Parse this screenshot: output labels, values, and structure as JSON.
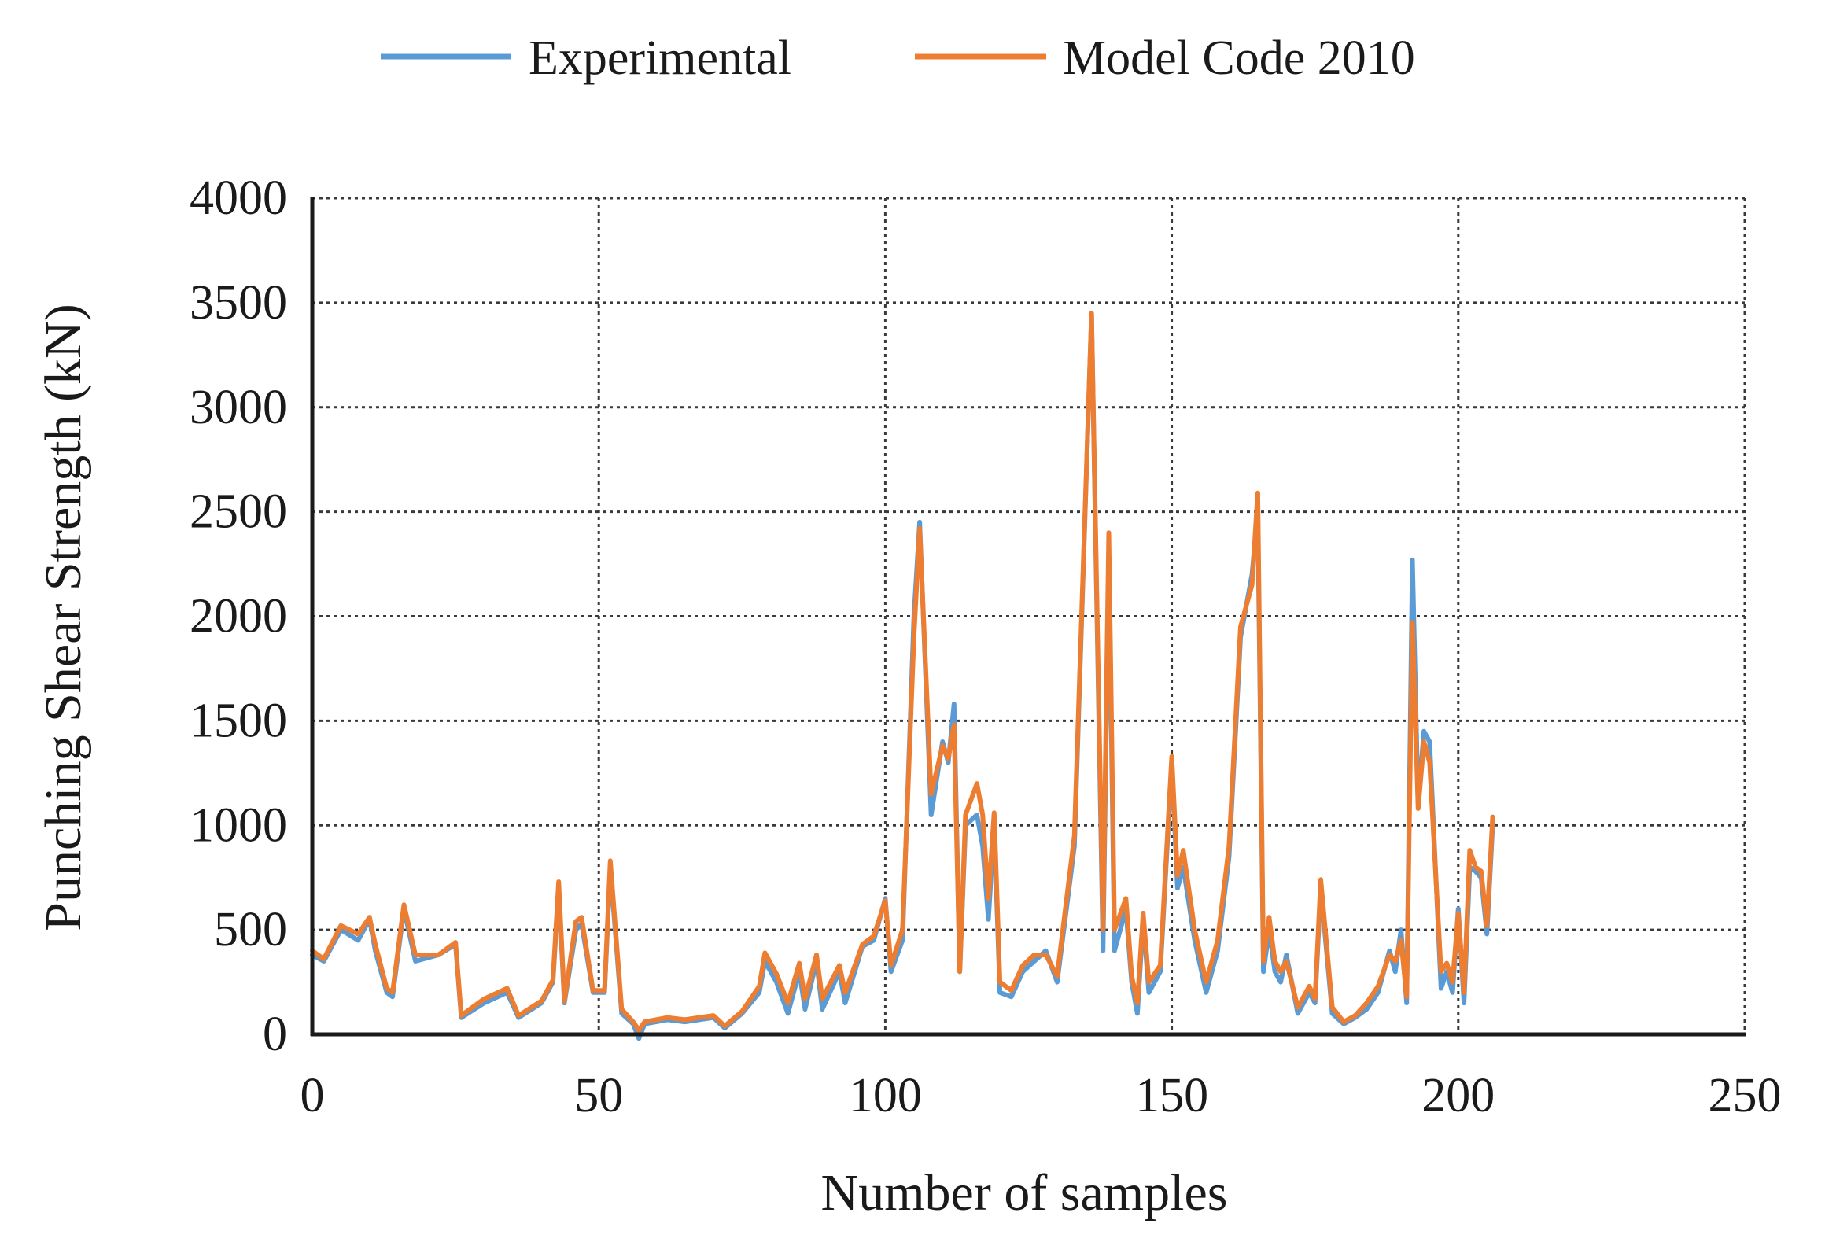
{
  "chart_data": {
    "type": "line",
    "title": "",
    "xlabel": "Number of samples",
    "ylabel": "Punching Shear Strength (kN)",
    "xlim": [
      0,
      250
    ],
    "ylim": [
      0,
      4000
    ],
    "xticks": [
      0,
      50,
      100,
      150,
      200,
      250
    ],
    "yticks": [
      0,
      500,
      1000,
      1500,
      2000,
      2500,
      3000,
      3500,
      4000
    ],
    "grid": true,
    "legend_position": "top-center",
    "series": [
      {
        "name": "Experimental",
        "color": "#5b9bd5",
        "keypoints": [
          [
            0,
            380
          ],
          [
            2,
            350
          ],
          [
            5,
            500
          ],
          [
            8,
            450
          ],
          [
            10,
            550
          ],
          [
            11,
            400
          ],
          [
            13,
            200
          ],
          [
            14,
            180
          ],
          [
            16,
            600
          ],
          [
            18,
            350
          ],
          [
            22,
            380
          ],
          [
            25,
            430
          ],
          [
            26,
            80
          ],
          [
            30,
            150
          ],
          [
            34,
            200
          ],
          [
            36,
            80
          ],
          [
            40,
            150
          ],
          [
            42,
            250
          ],
          [
            43,
            700
          ],
          [
            44,
            150
          ],
          [
            46,
            500
          ],
          [
            47,
            530
          ],
          [
            49,
            200
          ],
          [
            51,
            200
          ],
          [
            52,
            800
          ],
          [
            54,
            100
          ],
          [
            56,
            50
          ],
          [
            57,
            -20
          ],
          [
            58,
            50
          ],
          [
            62,
            70
          ],
          [
            65,
            60
          ],
          [
            70,
            80
          ],
          [
            72,
            30
          ],
          [
            75,
            100
          ],
          [
            78,
            200
          ],
          [
            79,
            350
          ],
          [
            81,
            250
          ],
          [
            83,
            100
          ],
          [
            85,
            300
          ],
          [
            86,
            120
          ],
          [
            88,
            350
          ],
          [
            89,
            120
          ],
          [
            92,
            300
          ],
          [
            93,
            150
          ],
          [
            96,
            420
          ],
          [
            98,
            450
          ],
          [
            100,
            650
          ],
          [
            101,
            300
          ],
          [
            103,
            450
          ],
          [
            105,
            2000
          ],
          [
            106,
            2450
          ],
          [
            108,
            1050
          ],
          [
            110,
            1400
          ],
          [
            111,
            1300
          ],
          [
            112,
            1580
          ],
          [
            113,
            300
          ],
          [
            114,
            1000
          ],
          [
            116,
            1050
          ],
          [
            117,
            900
          ],
          [
            118,
            550
          ],
          [
            119,
            1000
          ],
          [
            120,
            200
          ],
          [
            122,
            180
          ],
          [
            124,
            300
          ],
          [
            126,
            350
          ],
          [
            128,
            400
          ],
          [
            130,
            250
          ],
          [
            133,
            900
          ],
          [
            136,
            3450
          ],
          [
            138,
            400
          ],
          [
            139,
            2300
          ],
          [
            140,
            400
          ],
          [
            142,
            600
          ],
          [
            143,
            250
          ],
          [
            144,
            100
          ],
          [
            145,
            550
          ],
          [
            146,
            200
          ],
          [
            148,
            300
          ],
          [
            150,
            1300
          ],
          [
            151,
            700
          ],
          [
            152,
            800
          ],
          [
            154,
            450
          ],
          [
            156,
            200
          ],
          [
            158,
            400
          ],
          [
            160,
            850
          ],
          [
            162,
            1900
          ],
          [
            164,
            2200
          ],
          [
            165,
            2500
          ],
          [
            166,
            300
          ],
          [
            167,
            500
          ],
          [
            168,
            300
          ],
          [
            169,
            250
          ],
          [
            170,
            380
          ],
          [
            172,
            100
          ],
          [
            174,
            200
          ],
          [
            175,
            150
          ],
          [
            176,
            700
          ],
          [
            178,
            100
          ],
          [
            180,
            50
          ],
          [
            182,
            80
          ],
          [
            184,
            120
          ],
          [
            186,
            200
          ],
          [
            188,
            400
          ],
          [
            189,
            300
          ],
          [
            190,
            500
          ],
          [
            191,
            150
          ],
          [
            192,
            2270
          ],
          [
            193,
            1100
          ],
          [
            194,
            1450
          ],
          [
            195,
            1400
          ],
          [
            197,
            220
          ],
          [
            198,
            300
          ],
          [
            199,
            200
          ],
          [
            200,
            600
          ],
          [
            201,
            150
          ],
          [
            202,
            800
          ],
          [
            203,
            780
          ],
          [
            204,
            750
          ],
          [
            205,
            480
          ],
          [
            206,
            1000
          ]
        ]
      },
      {
        "name": "Model Code 2010",
        "color": "#ed7d31",
        "keypoints": [
          [
            0,
            400
          ],
          [
            2,
            360
          ],
          [
            5,
            520
          ],
          [
            8,
            480
          ],
          [
            10,
            560
          ],
          [
            11,
            430
          ],
          [
            13,
            220
          ],
          [
            14,
            200
          ],
          [
            16,
            620
          ],
          [
            18,
            380
          ],
          [
            22,
            380
          ],
          [
            25,
            440
          ],
          [
            26,
            90
          ],
          [
            30,
            170
          ],
          [
            34,
            220
          ],
          [
            36,
            90
          ],
          [
            40,
            160
          ],
          [
            42,
            260
          ],
          [
            43,
            730
          ],
          [
            44,
            160
          ],
          [
            46,
            540
          ],
          [
            47,
            560
          ],
          [
            49,
            210
          ],
          [
            51,
            210
          ],
          [
            52,
            830
          ],
          [
            54,
            120
          ],
          [
            56,
            60
          ],
          [
            57,
            20
          ],
          [
            58,
            60
          ],
          [
            62,
            80
          ],
          [
            65,
            70
          ],
          [
            70,
            90
          ],
          [
            72,
            40
          ],
          [
            75,
            110
          ],
          [
            78,
            230
          ],
          [
            79,
            390
          ],
          [
            81,
            290
          ],
          [
            83,
            150
          ],
          [
            85,
            340
          ],
          [
            86,
            170
          ],
          [
            88,
            380
          ],
          [
            89,
            170
          ],
          [
            92,
            330
          ],
          [
            93,
            200
          ],
          [
            96,
            430
          ],
          [
            98,
            470
          ],
          [
            100,
            640
          ],
          [
            101,
            330
          ],
          [
            103,
            500
          ],
          [
            105,
            1900
          ],
          [
            106,
            2420
          ],
          [
            108,
            1150
          ],
          [
            110,
            1380
          ],
          [
            111,
            1320
          ],
          [
            112,
            1480
          ],
          [
            113,
            300
          ],
          [
            114,
            1050
          ],
          [
            116,
            1200
          ],
          [
            117,
            1050
          ],
          [
            118,
            650
          ],
          [
            119,
            1060
          ],
          [
            120,
            250
          ],
          [
            122,
            210
          ],
          [
            124,
            330
          ],
          [
            126,
            380
          ],
          [
            128,
            380
          ],
          [
            130,
            280
          ],
          [
            133,
            950
          ],
          [
            136,
            3450
          ],
          [
            138,
            500
          ],
          [
            139,
            2400
          ],
          [
            140,
            500
          ],
          [
            142,
            650
          ],
          [
            143,
            280
          ],
          [
            144,
            150
          ],
          [
            145,
            580
          ],
          [
            146,
            250
          ],
          [
            148,
            330
          ],
          [
            150,
            1330
          ],
          [
            151,
            760
          ],
          [
            152,
            880
          ],
          [
            154,
            500
          ],
          [
            156,
            250
          ],
          [
            158,
            450
          ],
          [
            160,
            900
          ],
          [
            162,
            1950
          ],
          [
            164,
            2150
          ],
          [
            165,
            2590
          ],
          [
            166,
            350
          ],
          [
            167,
            560
          ],
          [
            168,
            350
          ],
          [
            169,
            300
          ],
          [
            170,
            350
          ],
          [
            172,
            130
          ],
          [
            174,
            230
          ],
          [
            175,
            170
          ],
          [
            176,
            740
          ],
          [
            178,
            130
          ],
          [
            180,
            60
          ],
          [
            182,
            90
          ],
          [
            184,
            150
          ],
          [
            186,
            230
          ],
          [
            188,
            380
          ],
          [
            189,
            350
          ],
          [
            190,
            450
          ],
          [
            191,
            180
          ],
          [
            192,
            1970
          ],
          [
            193,
            1080
          ],
          [
            194,
            1400
          ],
          [
            195,
            1300
          ],
          [
            197,
            300
          ],
          [
            198,
            340
          ],
          [
            199,
            250
          ],
          [
            200,
            580
          ],
          [
            201,
            200
          ],
          [
            202,
            880
          ],
          [
            203,
            800
          ],
          [
            204,
            780
          ],
          [
            205,
            520
          ],
          [
            206,
            1040
          ]
        ]
      }
    ]
  }
}
